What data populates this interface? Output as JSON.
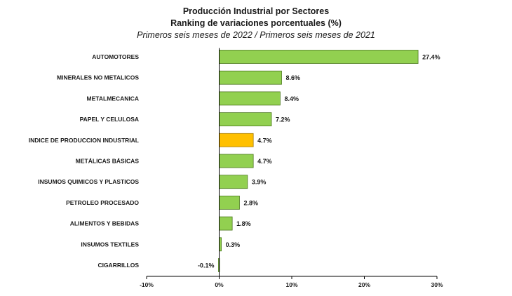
{
  "chart_data": {
    "type": "bar",
    "orientation": "horizontal",
    "title": "Producción Industrial por Sectores",
    "subtitle": "Ranking de variaciones porcentuales (%)",
    "period": "Primeros seis meses de 2022 / Primeros seis meses de 2021",
    "categories": [
      "AUTOMOTORES",
      "MINERALES NO METALICOS",
      "METALMECANICA",
      "PAPEL Y CELULOSA",
      "INDICE DE PRODUCCION INDUSTRIAL",
      "METÁLICAS BÁSICAS",
      "INSUMOS QUIMICOS Y PLASTICOS",
      "PETROLEO PROCESADO",
      "ALIMENTOS Y BEBIDAS",
      "INSUMOS TEXTILES",
      "CIGARRILLOS"
    ],
    "values": [
      27.4,
      8.6,
      8.4,
      7.2,
      4.7,
      4.7,
      3.9,
      2.8,
      1.8,
      0.3,
      -0.1
    ],
    "value_labels": [
      "27.4%",
      "8.6%",
      "8.4%",
      "7.2%",
      "4.7%",
      "4.7%",
      "3.9%",
      "2.8%",
      "1.8%",
      "0.3%",
      "-0.1%"
    ],
    "highlight_category": "INDICE DE PRODUCCION INDUSTRIAL",
    "xlim": [
      -10,
      30
    ],
    "x_ticks": [
      -10,
      0,
      10,
      20,
      30
    ],
    "x_tick_labels": [
      "-10%",
      "0%",
      "10%",
      "20%",
      "30%"
    ],
    "colors": {
      "bar": "#92d050",
      "highlight": "#ffc000",
      "bar_border": "#4d7a1f",
      "highlight_border": "#a57900"
    },
    "grid": false,
    "legend": "none"
  }
}
